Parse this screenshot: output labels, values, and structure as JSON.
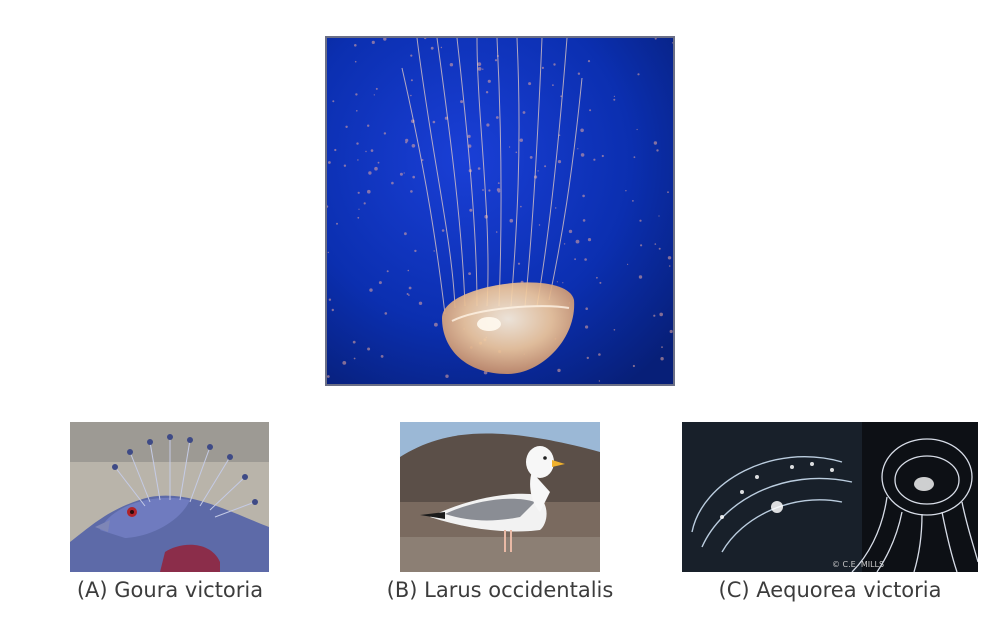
{
  "main_image": {
    "subject_icon": "jellyfish-photo",
    "colors": {
      "water": "#0b2fb0",
      "bell": "#f1c89a"
    }
  },
  "options": [
    {
      "label": "(A) Goura victoria",
      "icon": "crowned-pigeon-photo"
    },
    {
      "label": "(B) Larus occidentalis",
      "icon": "gull-photo"
    },
    {
      "label": "(C) Aequorea victoria",
      "icon": "crystal-jellyfish-photo",
      "watermark": "© C.E. MILLS"
    }
  ]
}
